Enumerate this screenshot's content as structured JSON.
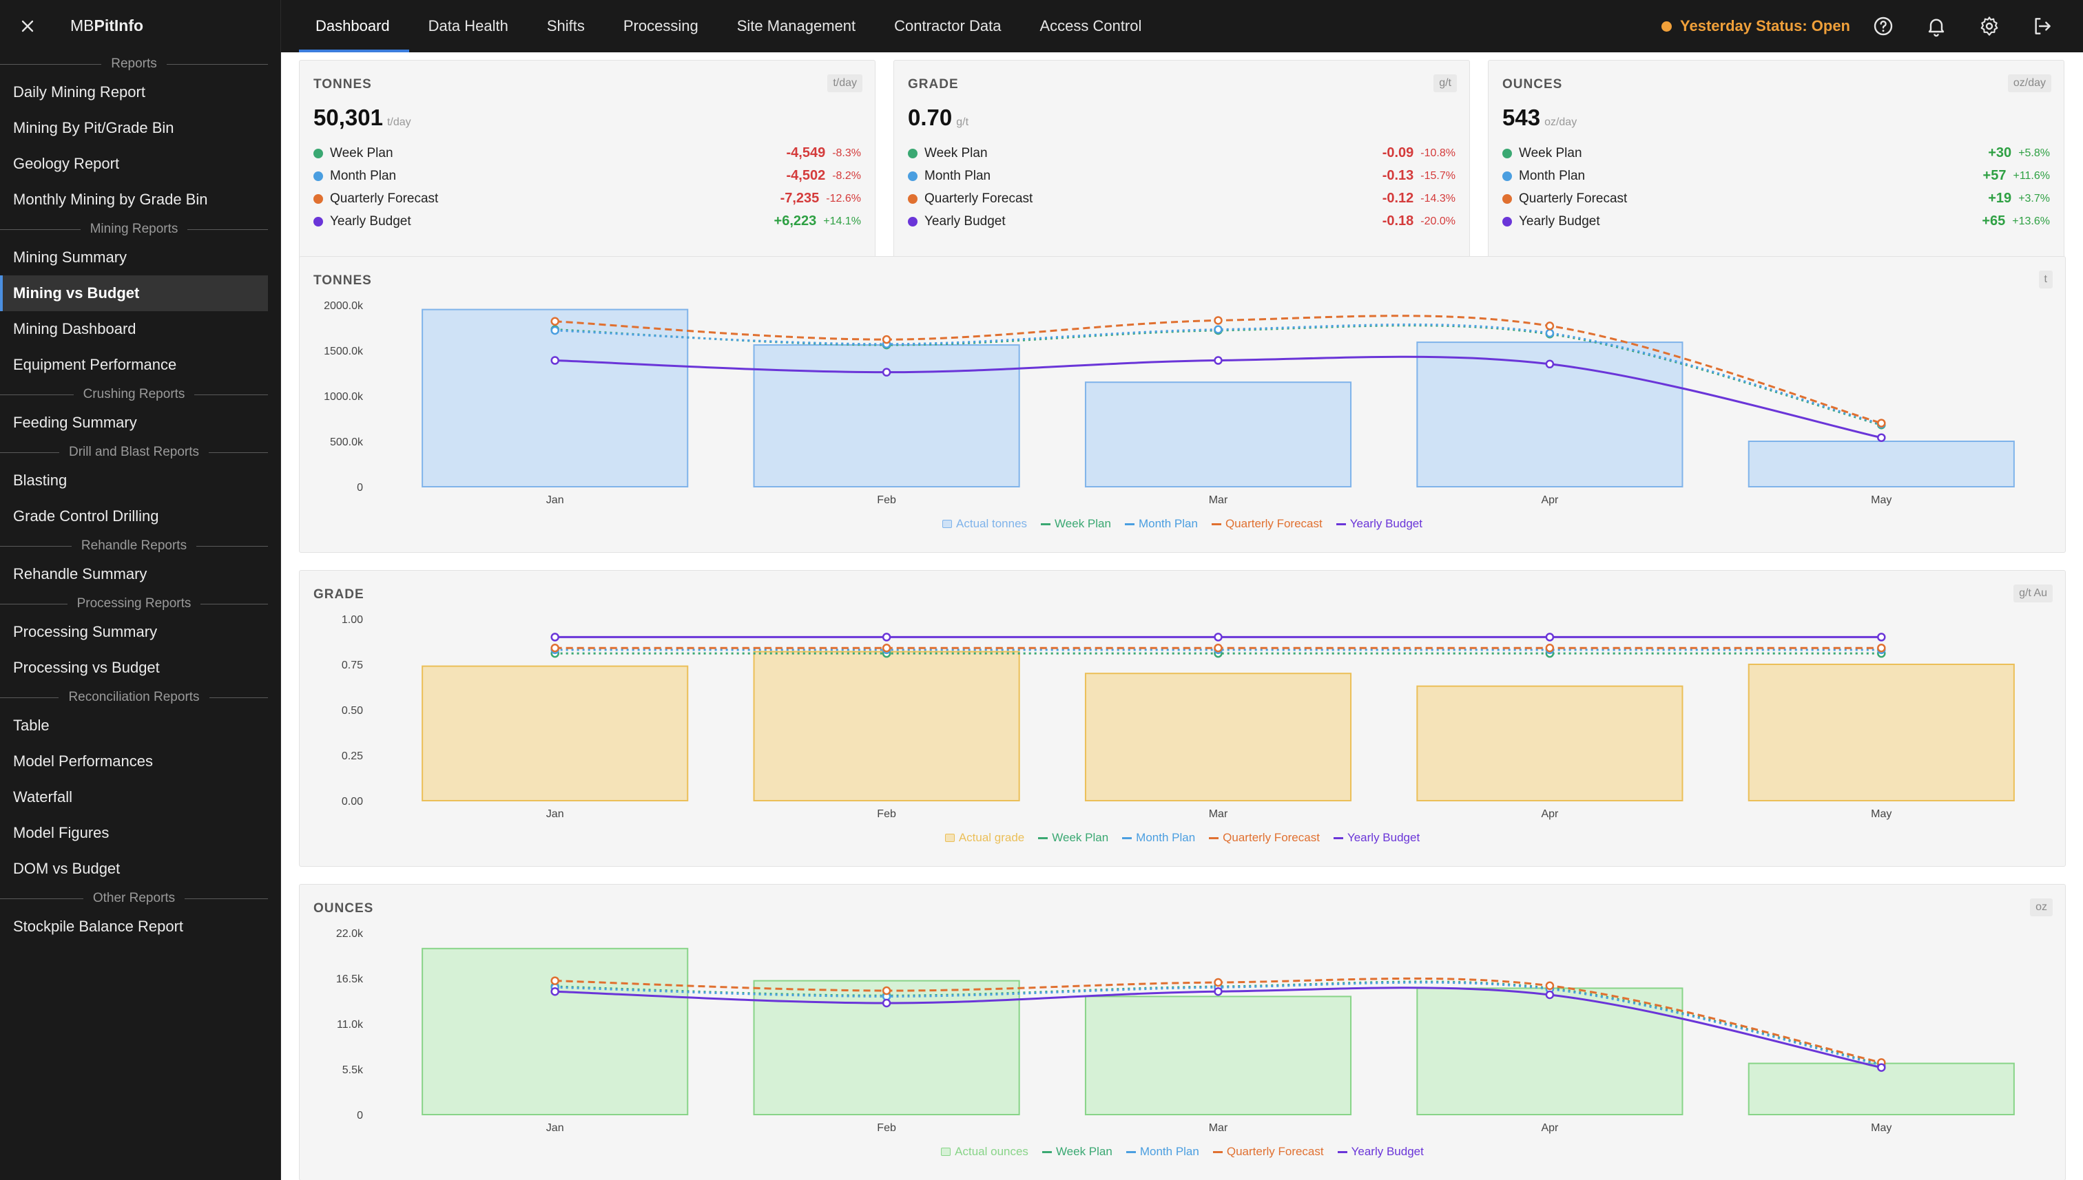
{
  "app": {
    "brand_prefix": "MB",
    "brand_bold": "PitInfo"
  },
  "sidebar": {
    "groups": [
      {
        "title": "Reports",
        "items": [
          "Daily Mining Report",
          "Mining By Pit/Grade Bin",
          "Geology Report",
          "Monthly Mining by Grade Bin"
        ]
      },
      {
        "title": "Mining Reports",
        "items": [
          "Mining Summary",
          "Mining vs Budget",
          "Mining Dashboard",
          "Equipment Performance"
        ]
      },
      {
        "title": "Crushing Reports",
        "items": [
          "Feeding Summary"
        ]
      },
      {
        "title": "Drill and Blast Reports",
        "items": [
          "Blasting",
          "Grade Control Drilling"
        ]
      },
      {
        "title": "Rehandle Reports",
        "items": [
          "Rehandle Summary"
        ]
      },
      {
        "title": "Processing Reports",
        "items": [
          "Processing Summary",
          "Processing vs Budget"
        ]
      },
      {
        "title": "Reconciliation Reports",
        "items": [
          "Table",
          "Model Performances",
          "Waterfall",
          "Model Figures",
          "DOM vs Budget"
        ]
      },
      {
        "title": "Other Reports",
        "items": [
          "Stockpile Balance Report"
        ]
      }
    ],
    "active_item": "Mining vs Budget"
  },
  "nav": {
    "tabs": [
      "Dashboard",
      "Data Health",
      "Shifts",
      "Processing",
      "Site Management",
      "Contractor Data",
      "Access Control"
    ],
    "active_tab": "Dashboard",
    "status_text": "Yesterday Status: Open",
    "status_color": "#f0a03a"
  },
  "colors": {
    "week_plan": "#3aa872",
    "month_plan": "#4a9ee0",
    "quarterly_forecast": "#e07030",
    "yearly_budget": "#6a35d8",
    "negative": "#d43b3b",
    "positive": "#2ea043"
  },
  "kpis": [
    {
      "label": "TONNES",
      "badge": "t/day",
      "value": "50,301",
      "unit": "t/day",
      "rows": [
        {
          "name": "Week Plan",
          "color": "#3aa872",
          "delta": "-4,549",
          "pct": "-8.3%",
          "sign": "neg"
        },
        {
          "name": "Month Plan",
          "color": "#4a9ee0",
          "delta": "-4,502",
          "pct": "-8.2%",
          "sign": "neg"
        },
        {
          "name": "Quarterly Forecast",
          "color": "#e07030",
          "delta": "-7,235",
          "pct": "-12.6%",
          "sign": "neg"
        },
        {
          "name": "Yearly Budget",
          "color": "#6a35d8",
          "delta": "+6,223",
          "pct": "+14.1%",
          "sign": "pos"
        }
      ]
    },
    {
      "label": "GRADE",
      "badge": "g/t",
      "value": "0.70",
      "unit": "g/t",
      "rows": [
        {
          "name": "Week Plan",
          "color": "#3aa872",
          "delta": "-0.09",
          "pct": "-10.8%",
          "sign": "neg"
        },
        {
          "name": "Month Plan",
          "color": "#4a9ee0",
          "delta": "-0.13",
          "pct": "-15.7%",
          "sign": "neg"
        },
        {
          "name": "Quarterly Forecast",
          "color": "#e07030",
          "delta": "-0.12",
          "pct": "-14.3%",
          "sign": "neg"
        },
        {
          "name": "Yearly Budget",
          "color": "#6a35d8",
          "delta": "-0.18",
          "pct": "-20.0%",
          "sign": "neg"
        }
      ]
    },
    {
      "label": "OUNCES",
      "badge": "oz/day",
      "value": "543",
      "unit": "oz/day",
      "rows": [
        {
          "name": "Week Plan",
          "color": "#3aa872",
          "delta": "+30",
          "pct": "+5.8%",
          "sign": "pos"
        },
        {
          "name": "Month Plan",
          "color": "#4a9ee0",
          "delta": "+57",
          "pct": "+11.6%",
          "sign": "pos"
        },
        {
          "name": "Quarterly Forecast",
          "color": "#e07030",
          "delta": "+19",
          "pct": "+3.7%",
          "sign": "pos"
        },
        {
          "name": "Yearly Budget",
          "color": "#6a35d8",
          "delta": "+65",
          "pct": "+13.6%",
          "sign": "pos"
        }
      ]
    }
  ],
  "chart_data": [
    {
      "type": "bar",
      "title": "TONNES",
      "unit_badge": "t",
      "categories": [
        "Jan",
        "Feb",
        "Mar",
        "Apr",
        "May"
      ],
      "ylim": [
        0,
        2000000
      ],
      "yticks": [
        0,
        500000,
        1000000,
        1500000,
        2000000
      ],
      "ytick_labels": [
        "0",
        "500.0k",
        "1000.0k",
        "1500.0k",
        "2000.0k"
      ],
      "bar_color": "#cfe2f6",
      "bar_stroke": "#7fb3ea",
      "series": [
        {
          "name": "Actual tonnes",
          "kind": "bar",
          "values": [
            1950000,
            1560000,
            1150000,
            1590000,
            500000
          ]
        },
        {
          "name": "Week Plan",
          "kind": "line",
          "dash": "dot",
          "color": "#3aa872",
          "values": [
            1730000,
            1560000,
            1720000,
            1680000,
            680000
          ]
        },
        {
          "name": "Month Plan",
          "kind": "line",
          "dash": "dot",
          "color": "#4a9ee0",
          "values": [
            1720000,
            1570000,
            1730000,
            1690000,
            690000
          ]
        },
        {
          "name": "Quarterly Forecast",
          "kind": "line",
          "dash": "dash",
          "color": "#e07030",
          "values": [
            1820000,
            1620000,
            1830000,
            1770000,
            700000
          ]
        },
        {
          "name": "Yearly Budget",
          "kind": "line",
          "dash": "solid",
          "color": "#6a35d8",
          "values": [
            1390000,
            1260000,
            1390000,
            1350000,
            540000
          ]
        }
      ]
    },
    {
      "type": "bar",
      "title": "GRADE",
      "unit_badge": "g/t Au",
      "categories": [
        "Jan",
        "Feb",
        "Mar",
        "Apr",
        "May"
      ],
      "ylim": [
        0,
        1.0
      ],
      "yticks": [
        0,
        0.25,
        0.5,
        0.75,
        1.0
      ],
      "ytick_labels": [
        "0.00",
        "0.25",
        "0.50",
        "0.75",
        "1.00"
      ],
      "bar_color": "#f5e3b8",
      "bar_stroke": "#ebbf58",
      "series": [
        {
          "name": "Actual grade",
          "kind": "bar",
          "values": [
            0.74,
            0.82,
            0.7,
            0.63,
            0.75
          ]
        },
        {
          "name": "Week Plan",
          "kind": "line",
          "dash": "dot",
          "color": "#3aa872",
          "values": [
            0.81,
            0.81,
            0.81,
            0.81,
            0.81
          ]
        },
        {
          "name": "Month Plan",
          "kind": "line",
          "dash": "dot",
          "color": "#4a9ee0",
          "values": [
            0.83,
            0.83,
            0.83,
            0.83,
            0.83
          ]
        },
        {
          "name": "Quarterly Forecast",
          "kind": "line",
          "dash": "dash",
          "color": "#e07030",
          "values": [
            0.84,
            0.84,
            0.84,
            0.84,
            0.84
          ]
        },
        {
          "name": "Yearly Budget",
          "kind": "line",
          "dash": "solid",
          "color": "#6a35d8",
          "values": [
            0.9,
            0.9,
            0.9,
            0.9,
            0.9
          ]
        }
      ]
    },
    {
      "type": "bar",
      "title": "OUNCES",
      "unit_badge": "oz",
      "categories": [
        "Jan",
        "Feb",
        "Mar",
        "Apr",
        "May"
      ],
      "ylim": [
        0,
        22000
      ],
      "yticks": [
        0,
        5500,
        11000,
        16500,
        22000
      ],
      "ytick_labels": [
        "0",
        "5.5k",
        "11.0k",
        "16.5k",
        "22.0k"
      ],
      "bar_color": "#d6f1d6",
      "bar_stroke": "#88d488",
      "series": [
        {
          "name": "Actual ounces",
          "kind": "bar",
          "values": [
            20100,
            16200,
            14300,
            15300,
            6200
          ]
        },
        {
          "name": "Week Plan",
          "kind": "line",
          "dash": "dot",
          "color": "#3aa872",
          "values": [
            15500,
            14400,
            15500,
            15300,
            6100
          ]
        },
        {
          "name": "Month Plan",
          "kind": "line",
          "dash": "dot",
          "color": "#4a9ee0",
          "values": [
            15400,
            14300,
            15400,
            15200,
            6000
          ]
        },
        {
          "name": "Quarterly Forecast",
          "kind": "line",
          "dash": "dash",
          "color": "#e07030",
          "values": [
            16200,
            15000,
            16000,
            15600,
            6300
          ]
        },
        {
          "name": "Yearly Budget",
          "kind": "line",
          "dash": "solid",
          "color": "#6a35d8",
          "values": [
            14900,
            13500,
            14900,
            14500,
            5700
          ]
        }
      ]
    }
  ]
}
